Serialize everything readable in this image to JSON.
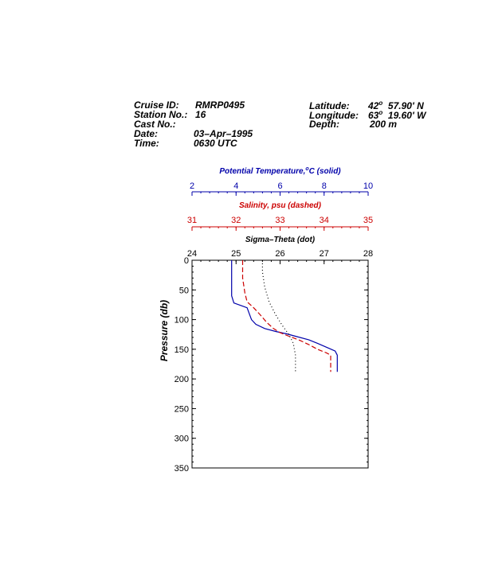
{
  "header": {
    "cruise_id_label": "Cruise ID:",
    "cruise_id": "RMRP0495",
    "station_label": "Station No.:",
    "station": "16",
    "cast_label": "Cast No.:",
    "cast": "",
    "date_label": "Date:",
    "date": "03–Apr–1995",
    "time_label": "Time:",
    "time": "0630 UTC",
    "latitude_label": "Latitude:",
    "latitude_deg": "42",
    "latitude_min": "57.90",
    "latitude_hemi": "N",
    "longitude_label": "Longitude:",
    "longitude_deg": "63",
    "longitude_min": "19.60",
    "longitude_hemi": "W",
    "depth_label": "Depth:",
    "depth": "200 m",
    "deg_symbol": "o",
    "min_symbol": "'"
  },
  "colors": {
    "temperature": "#0000aa",
    "salinity": "#cc0000",
    "sigma": "#000000",
    "axis": "#000000"
  },
  "chart_data": {
    "type": "line",
    "ylabel": "Pressure (db)",
    "ylim": [
      0,
      350
    ],
    "y_reversed": true,
    "y_ticks": [
      0,
      50,
      100,
      150,
      200,
      250,
      300,
      350
    ],
    "axes": [
      {
        "id": "temperature",
        "label": "Potential Temperature,",
        "label_unit": "C (solid)",
        "label_deg": "o",
        "range": [
          2,
          10
        ],
        "ticks": [
          2,
          4,
          6,
          8,
          10
        ],
        "color": "#0000aa"
      },
      {
        "id": "salinity",
        "label": "Salinity, psu  (dashed)",
        "range": [
          31,
          35
        ],
        "ticks": [
          31,
          32,
          33,
          34,
          35
        ],
        "color": "#cc0000"
      },
      {
        "id": "sigma",
        "label": "Sigma–Theta (dot)",
        "range": [
          24,
          28
        ],
        "ticks": [
          24,
          25,
          26,
          27,
          28
        ],
        "color": "#000000"
      }
    ],
    "series": [
      {
        "id": "temperature",
        "style": "solid",
        "points": [
          [
            3.8,
            0
          ],
          [
            3.8,
            30
          ],
          [
            3.8,
            60
          ],
          [
            3.9,
            72
          ],
          [
            4.2,
            76
          ],
          [
            4.5,
            80
          ],
          [
            4.6,
            90
          ],
          [
            4.7,
            100
          ],
          [
            4.9,
            108
          ],
          [
            5.3,
            115
          ],
          [
            5.8,
            120
          ],
          [
            6.3,
            124
          ],
          [
            6.7,
            128
          ],
          [
            7.3,
            134
          ],
          [
            7.7,
            140
          ],
          [
            8.2,
            148
          ],
          [
            8.5,
            153
          ],
          [
            8.6,
            160
          ],
          [
            8.6,
            175
          ],
          [
            8.6,
            188
          ]
        ]
      },
      {
        "id": "salinity",
        "style": "dashed",
        "points": [
          [
            32.15,
            0
          ],
          [
            32.15,
            30
          ],
          [
            32.2,
            55
          ],
          [
            32.25,
            70
          ],
          [
            32.4,
            80
          ],
          [
            32.55,
            92
          ],
          [
            32.7,
            105
          ],
          [
            32.85,
            115
          ],
          [
            33.0,
            122
          ],
          [
            33.2,
            128
          ],
          [
            33.45,
            135
          ],
          [
            33.65,
            142
          ],
          [
            33.85,
            150
          ],
          [
            34.05,
            156
          ],
          [
            34.15,
            160
          ],
          [
            34.15,
            175
          ],
          [
            34.15,
            188
          ]
        ]
      },
      {
        "id": "sigma",
        "style": "dot",
        "points": [
          [
            25.6,
            0
          ],
          [
            25.6,
            20
          ],
          [
            25.65,
            45
          ],
          [
            25.75,
            70
          ],
          [
            25.9,
            92
          ],
          [
            26.05,
            110
          ],
          [
            26.2,
            125
          ],
          [
            26.3,
            140
          ],
          [
            26.35,
            160
          ],
          [
            26.35,
            180
          ],
          [
            26.35,
            188
          ]
        ]
      }
    ]
  }
}
